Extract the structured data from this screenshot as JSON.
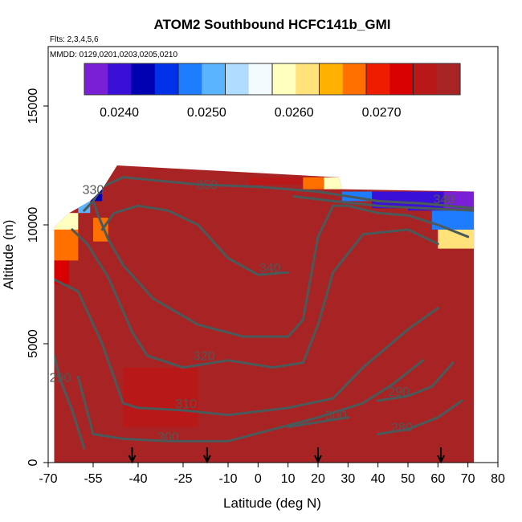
{
  "chart_data": {
    "type": "heatmap",
    "title": "ATOM2 Southbound HCFC141b_GMI",
    "subtitle_flights": "Flts: 2,3,4,5,6",
    "subtitle_dates": "MMDD: 0129,0201,0203,0205,0210",
    "xlabel": "Latitude (deg N)",
    "ylabel": "Altitude (m)",
    "xlim": [
      -70,
      80
    ],
    "ylim": [
      0,
      17500
    ],
    "x_ticks": [
      -70,
      -55,
      -40,
      -25,
      -10,
      0,
      10,
      20,
      30,
      40,
      50,
      60,
      70,
      80
    ],
    "x_tick_labels": [
      "-70",
      "-55",
      "-40",
      "-25",
      "-10",
      "0",
      "10",
      "20",
      "30",
      "40",
      "50",
      "60",
      "70",
      "80"
    ],
    "y_ticks": [
      0,
      5000,
      10000,
      15000
    ],
    "y_tick_labels": [
      "0",
      "5000",
      "10000",
      "15000"
    ],
    "colorbar": {
      "min": 0.0236,
      "max": 0.0279,
      "ticks": [
        0.024,
        0.025,
        0.026,
        0.027
      ],
      "tick_labels": [
        "0.0240",
        "0.0250",
        "0.0260",
        "0.0270"
      ],
      "colors": [
        "#7a1fd6",
        "#3a10d8",
        "#0000b0",
        "#0030e8",
        "#1e7cff",
        "#5ab4ff",
        "#b0dcff",
        "#f4fbff",
        "#ffffc0",
        "#ffe27a",
        "#ffb000",
        "#ff7000",
        "#f01c00",
        "#d80000",
        "#b81818",
        "#a82424"
      ]
    },
    "background_value": 0.0277,
    "data_region": [
      {
        "lat": -68,
        "top_alt": 9900
      },
      {
        "lat": -63,
        "top_alt": 10500
      },
      {
        "lat": -56,
        "top_alt": 11000
      },
      {
        "lat": -52,
        "top_alt": 11500
      },
      {
        "lat": -47,
        "top_alt": 12500
      },
      {
        "lat": 27,
        "top_alt": 12000
      },
      {
        "lat": 28,
        "top_alt": 11500
      },
      {
        "lat": 72,
        "top_alt": 11400
      }
    ],
    "cells": [
      {
        "lat": [
          -68,
          -60
        ],
        "alt": [
          9800,
          10500
        ],
        "value": 0.0258
      },
      {
        "lat": [
          -68,
          -60
        ],
        "alt": [
          8500,
          9800
        ],
        "value": 0.0266
      },
      {
        "lat": [
          -68,
          -63
        ],
        "alt": [
          7500,
          8500
        ],
        "value": 0.0272
      },
      {
        "lat": [
          -60,
          -56
        ],
        "alt": [
          10500,
          11000
        ],
        "value": 0.0252
      },
      {
        "lat": [
          -56,
          -52
        ],
        "alt": [
          11000,
          11500
        ],
        "value": 0.0244
      },
      {
        "lat": [
          -55,
          -50
        ],
        "alt": [
          9300,
          10300
        ],
        "value": 0.0266
      },
      {
        "lat": [
          -3,
          15
        ],
        "alt": [
          11700,
          12000
        ],
        "value": 0.0274
      },
      {
        "lat": [
          15,
          22
        ],
        "alt": [
          11500,
          12000
        ],
        "value": 0.0266
      },
      {
        "lat": [
          22,
          28
        ],
        "alt": [
          11500,
          12000
        ],
        "value": 0.0259
      },
      {
        "lat": [
          28,
          38
        ],
        "alt": [
          11000,
          11400
        ],
        "value": 0.0247
      },
      {
        "lat": [
          38,
          50
        ],
        "alt": [
          10700,
          11400
        ],
        "value": 0.0241
      },
      {
        "lat": [
          50,
          62
        ],
        "alt": [
          10600,
          11400
        ],
        "value": 0.0239
      },
      {
        "lat": [
          62,
          72
        ],
        "alt": [
          10600,
          11400
        ],
        "value": 0.0236
      },
      {
        "lat": [
          58,
          72
        ],
        "alt": [
          9800,
          10600
        ],
        "value": 0.0249
      },
      {
        "lat": [
          60,
          72
        ],
        "alt": [
          9000,
          9800
        ],
        "value": 0.0262
      },
      {
        "lat": [
          -58,
          -20
        ],
        "alt": [
          0,
          1200
        ],
        "value": 0.0278
      },
      {
        "lat": [
          -45,
          -20
        ],
        "alt": [
          1500,
          4000
        ],
        "value": 0.0276
      }
    ],
    "contours": [
      {
        "label": "350",
        "label_lat": -17,
        "label_alt": 11500,
        "points": [
          [
            -55,
            11000
          ],
          [
            -52,
            11600
          ],
          [
            -45,
            12000
          ],
          [
            -20,
            11700
          ],
          [
            0,
            11600
          ],
          [
            20,
            11400
          ],
          [
            40,
            11000
          ],
          [
            55,
            10900
          ],
          [
            72,
            10700
          ]
        ]
      },
      {
        "label": "340",
        "label_lat": 4,
        "label_alt": 8000,
        "points": [
          [
            -52,
            9800
          ],
          [
            -48,
            10500
          ],
          [
            -40,
            10800
          ],
          [
            -30,
            10600
          ],
          [
            -20,
            10000
          ],
          [
            -10,
            8600
          ],
          [
            0,
            7900
          ],
          [
            10,
            8000
          ]
        ]
      },
      {
        "label": "340",
        "label_lat": 62,
        "label_alt": 10900,
        "points": [
          [
            12,
            11200
          ],
          [
            25,
            11000
          ],
          [
            40,
            10800
          ],
          [
            55,
            10700
          ],
          [
            72,
            10600
          ]
        ]
      },
      {
        "label": "330",
        "label_lat": -55,
        "label_alt": 11300,
        "points": [
          [
            -58,
            10600
          ],
          [
            -55,
            11000
          ],
          [
            -53,
            10300
          ],
          [
            -50,
            9400
          ],
          [
            -45,
            8300
          ],
          [
            -35,
            6900
          ],
          [
            -20,
            5800
          ],
          [
            -5,
            5300
          ],
          [
            10,
            5300
          ],
          [
            15,
            6000
          ],
          [
            20,
            9500
          ],
          [
            25,
            10800
          ],
          [
            30,
            10800
          ],
          [
            40,
            10500
          ],
          [
            50,
            10400
          ],
          [
            60,
            10000
          ],
          [
            70,
            9500
          ]
        ]
      },
      {
        "label": "320",
        "label_lat": -18,
        "label_alt": 4300,
        "points": [
          [
            -62,
            9800
          ],
          [
            -57,
            9200
          ],
          [
            -50,
            7800
          ],
          [
            -42,
            5500
          ],
          [
            -37,
            4500
          ],
          [
            -25,
            4000
          ],
          [
            -10,
            4300
          ],
          [
            5,
            4000
          ],
          [
            15,
            4200
          ],
          [
            20,
            5800
          ],
          [
            25,
            8000
          ],
          [
            35,
            9600
          ],
          [
            50,
            9800
          ],
          [
            60,
            9200
          ]
        ]
      },
      {
        "label": "310",
        "label_lat": -24,
        "label_alt": 2300,
        "points": [
          [
            -68,
            7700
          ],
          [
            -60,
            7200
          ],
          [
            -52,
            5000
          ],
          [
            -45,
            2500
          ],
          [
            -40,
            2300
          ],
          [
            -25,
            2200
          ],
          [
            -10,
            2000
          ],
          [
            10,
            2300
          ],
          [
            25,
            2700
          ],
          [
            35,
            4000
          ],
          [
            50,
            5600
          ],
          [
            60,
            6500
          ]
        ]
      },
      {
        "label": "300",
        "label_lat": -30,
        "label_alt": 900,
        "points": [
          [
            -60,
            3600
          ],
          [
            -55,
            1200
          ],
          [
            -45,
            1000
          ],
          [
            -30,
            900
          ],
          [
            -10,
            900
          ],
          [
            5,
            1400
          ],
          [
            20,
            1900
          ],
          [
            35,
            2500
          ],
          [
            45,
            3300
          ],
          [
            55,
            4300
          ]
        ]
      },
      {
        "label": "300",
        "label_lat": 26,
        "label_alt": 1800,
        "points": [
          [
            10,
            1500
          ],
          [
            20,
            1700
          ],
          [
            30,
            1900
          ]
        ]
      },
      {
        "label": "290",
        "label_lat": -66,
        "label_alt": 3400,
        "points": [
          [
            -68,
            4500
          ],
          [
            -66,
            3500
          ],
          [
            -62,
            2200
          ],
          [
            -58,
            600
          ]
        ]
      },
      {
        "label": "290",
        "label_lat": 47,
        "label_alt": 2800,
        "points": [
          [
            40,
            2600
          ],
          [
            50,
            2800
          ],
          [
            58,
            3200
          ],
          [
            65,
            4200
          ]
        ]
      },
      {
        "label": "280",
        "label_lat": 48,
        "label_alt": 1300,
        "points": [
          [
            40,
            1200
          ],
          [
            50,
            1400
          ],
          [
            60,
            1900
          ],
          [
            68,
            2600
          ]
        ]
      }
    ],
    "arrows_lat": [
      -42,
      -17,
      20,
      61
    ]
  }
}
